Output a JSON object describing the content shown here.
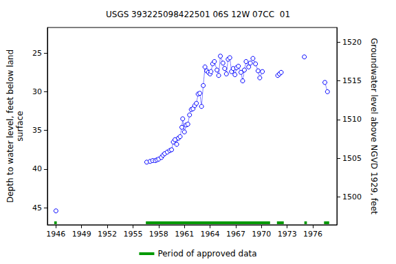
{
  "chart_data": {
    "type": "scatter",
    "title": "USGS 393225098422501 06S 12W 07CC  01",
    "x_label": "",
    "y_label": "Depth to water level, feet below land\nsurface",
    "y2_label": "Groundwater level above NGVD 1929, feet",
    "series": [
      {
        "name": "Depth to water level",
        "color": "#0000ff",
        "marker": "circle",
        "line_style": "dotted",
        "x": [
          1946.0,
          1951.0,
          1956.6,
          1957.0,
          1957.3,
          1957.6,
          1957.8,
          1958.0,
          1958.3,
          1958.5,
          1958.7,
          1959.0,
          1959.3,
          1959.5,
          1959.7,
          1959.9,
          1960.1,
          1960.3,
          1960.5,
          1960.7,
          1960.8,
          1961.0,
          1961.2,
          1961.4,
          1961.6,
          1961.8,
          1962.0,
          1962.2,
          1962.4,
          1962.6,
          1962.8,
          1963.0,
          1963.2,
          1963.4,
          1963.6,
          1963.8,
          1964.0,
          1964.1,
          1964.3,
          1964.5,
          1964.8,
          1965.0,
          1965.2,
          1965.5,
          1965.7,
          1965.9,
          1966.1,
          1966.3,
          1966.5,
          1966.7,
          1966.9,
          1967.1,
          1967.3,
          1967.6,
          1967.8,
          1968.0,
          1968.2,
          1968.5,
          1968.7,
          1969.0,
          1969.3,
          1969.6,
          1969.8,
          1970.1,
          1971.0,
          1971.9,
          1972.1,
          1972.3,
          1973.6,
          1975.0,
          1976.2,
          1977.4,
          1977.7
        ],
        "values": [
          45.4,
          null,
          39.1,
          39.0,
          38.9,
          38.9,
          38.8,
          38.7,
          38.5,
          38.2,
          38.0,
          37.8,
          37.6,
          37.5,
          36.5,
          36.2,
          36.8,
          36.0,
          35.8,
          34.6,
          33.5,
          35.2,
          34.3,
          34.2,
          33.0,
          32.3,
          32.2,
          31.8,
          31.5,
          30.3,
          30.2,
          31.9,
          29.2,
          26.8,
          27.3,
          27.5,
          27.7,
          27.4,
          26.4,
          26.1,
          27.2,
          27.9,
          25.4,
          26.3,
          27.0,
          27.7,
          25.8,
          25.6,
          27.4,
          27.0,
          27.8,
          26.9,
          26.7,
          27.5,
          28.6,
          27.2,
          26.1,
          26.8,
          26.3,
          25.7,
          26.4,
          27.3,
          28.2,
          27.4,
          null,
          27.9,
          27.7,
          27.5,
          null,
          25.5,
          null,
          28.8,
          30.0
        ]
      }
    ],
    "approved_periods": {
      "name": "Period of approved data",
      "color": "#009900",
      "ranges": [
        [
          1945.8,
          1946.1
        ],
        [
          1956.5,
          1971.0
        ],
        [
          1971.8,
          1972.6
        ],
        [
          1975.0,
          1975.3
        ],
        [
          1977.3,
          1977.9
        ]
      ]
    },
    "xlim": [
      1945.0,
      1978.8
    ],
    "xticks": [
      1946,
      1949,
      1952,
      1955,
      1958,
      1961,
      1964,
      1967,
      1970,
      1973,
      1976
    ],
    "ylim": [
      21.7,
      47.2
    ],
    "yticks": [
      25,
      30,
      35,
      40,
      45
    ],
    "y2lim": [
      1496.4,
      1521.9
    ],
    "y2ticks": [
      1500,
      1505,
      1510,
      1515,
      1520
    ],
    "grid": false,
    "legend": "bottom"
  }
}
